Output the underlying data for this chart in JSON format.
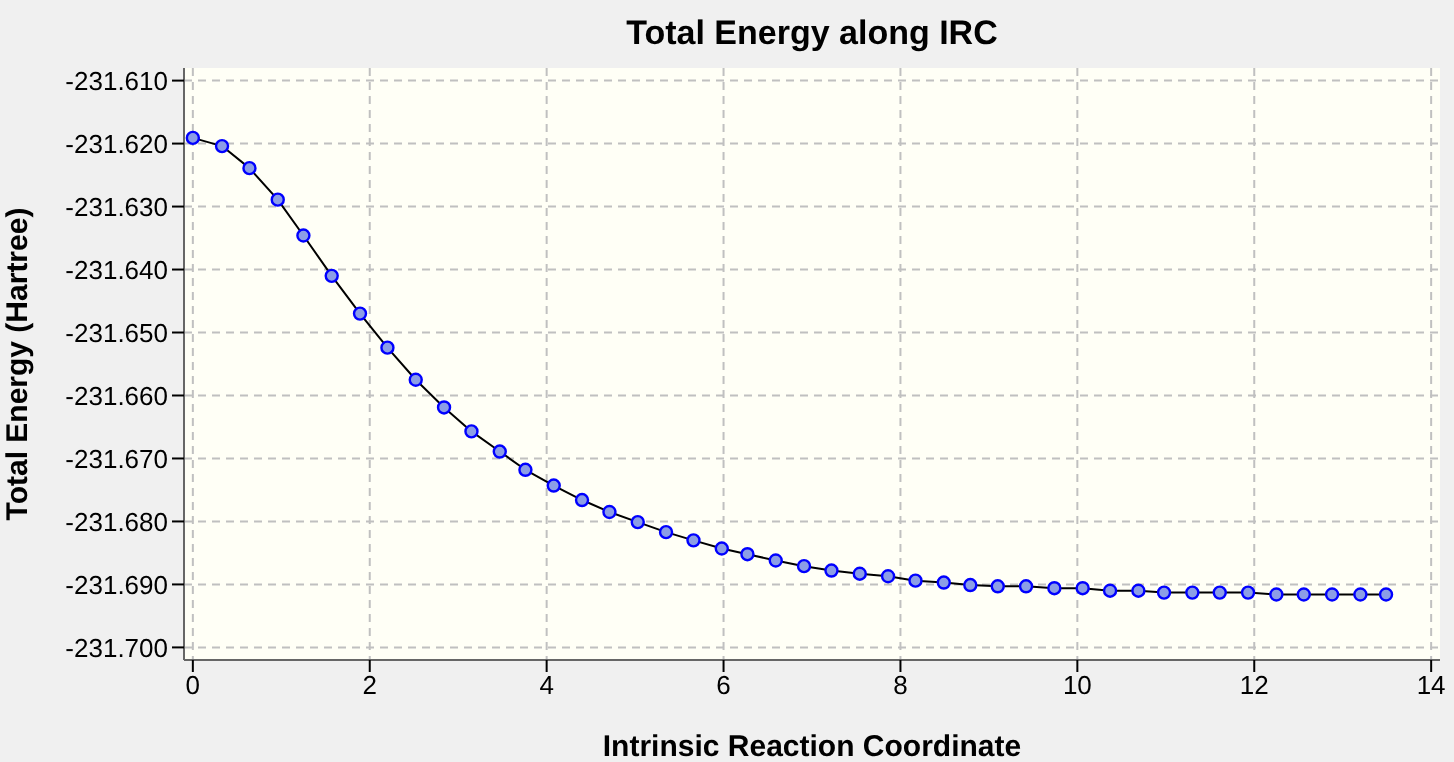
{
  "chart_data": {
    "type": "line",
    "title": "Total Energy along IRC",
    "xlabel": "Intrinsic Reaction Coordinate",
    "ylabel": "Total Energy (Hartree)",
    "x": [
      0.0,
      0.33,
      0.64,
      0.96,
      1.25,
      1.57,
      1.89,
      2.2,
      2.52,
      2.84,
      3.15,
      3.47,
      3.76,
      4.08,
      4.4,
      4.71,
      5.03,
      5.35,
      5.66,
      5.98,
      6.27,
      6.59,
      6.91,
      7.22,
      7.54,
      7.86,
      8.17,
      8.49,
      8.79,
      9.1,
      9.42,
      9.74,
      10.06,
      10.37,
      10.69,
      10.98,
      11.3,
      11.61,
      11.93,
      12.25,
      12.56,
      12.88,
      13.2,
      13.49
    ],
    "series": [
      {
        "color": "#000000",
        "values": [
          -231.6191,
          -231.6204,
          -231.6239,
          -231.6289,
          -231.6346,
          -231.641,
          -231.647,
          -231.6524,
          -231.6575,
          -231.6619,
          -231.6657,
          -231.6689,
          -231.6718,
          -231.6743,
          -231.6766,
          -231.6785,
          -231.6801,
          -231.6817,
          -231.683,
          -231.6843,
          -231.6852,
          -231.6862,
          -231.6871,
          -231.6878,
          -231.6883,
          -231.6887,
          -231.6894,
          -231.6897,
          -231.6901,
          -231.6903,
          -231.6903,
          -231.6906,
          -231.6906,
          -231.691,
          -231.691,
          -231.6913,
          -231.6913,
          -231.6913,
          -231.6913,
          -231.6916,
          -231.6916,
          -231.6916,
          -231.6916,
          -231.6916
        ]
      }
    ],
    "xlim": [
      -0.1,
      14.1
    ],
    "xticks": [
      0,
      2,
      4,
      6,
      8,
      10,
      12,
      14
    ],
    "ylim": [
      -231.702,
      -231.608
    ],
    "yticks": [
      {
        "value": -231.7,
        "label": "-231.700"
      },
      {
        "value": -231.69,
        "label": "-231.690"
      },
      {
        "value": -231.68,
        "label": "-231.680"
      },
      {
        "value": -231.67,
        "label": "-231.670"
      },
      {
        "value": -231.66,
        "label": "-231.660"
      },
      {
        "value": -231.65,
        "label": "-231.650"
      },
      {
        "value": -231.64,
        "label": "-231.640"
      },
      {
        "value": -231.63,
        "label": "-231.630"
      },
      {
        "value": -231.62,
        "label": "-231.620"
      },
      {
        "value": -231.61,
        "label": "-231.610"
      }
    ],
    "grid": true,
    "marker": "circle",
    "line_style": "solid"
  }
}
